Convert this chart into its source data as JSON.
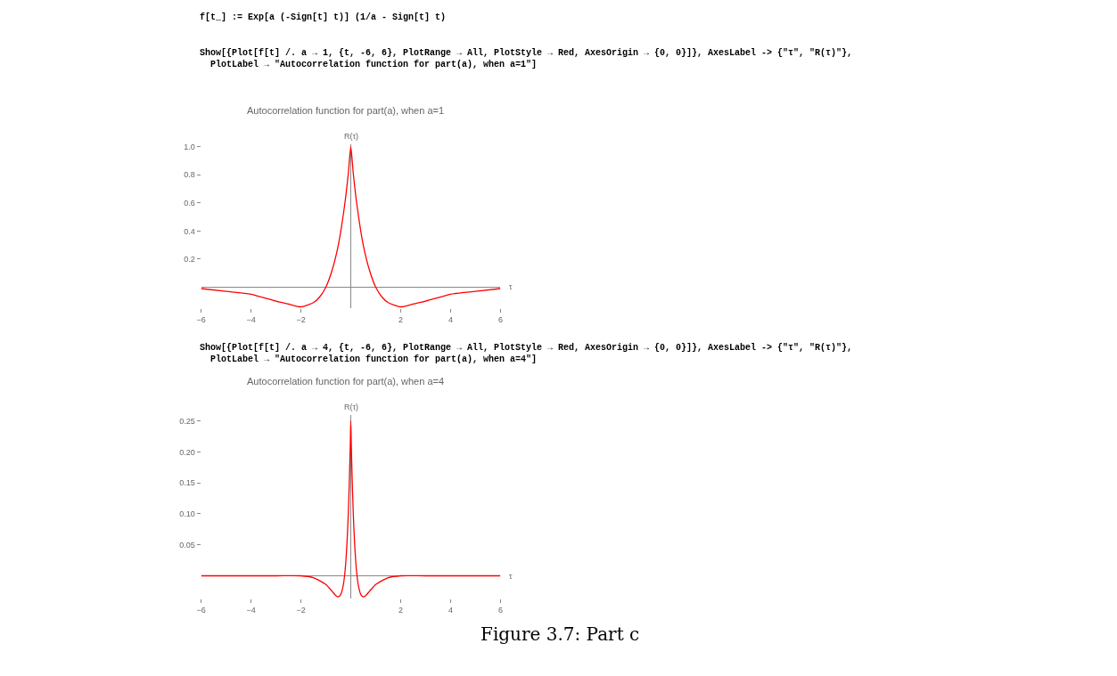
{
  "chart_data": [
    {
      "type": "line",
      "title": "Autocorrelation function for part(a), when a=1",
      "xlabel": "τ",
      "ylabel": "R(τ)",
      "annotations": [
        "f[t_] := Exp[a (-Sign[t] t)] (1/a - Sign[t] t)",
        "Show[{Plot[f[t] /. a → 1, {t, -6, 6}, PlotRange → All, PlotStyle → Red, AxesOrigin → {0, 0}]}, AxesLabel -> {\"τ\", \"R(τ)\"},\n  PlotLabel → \"Autocorrelation function for part(a), when a=1\"]"
      ],
      "x": [
        -6,
        -5,
        -4,
        -3,
        -2.5,
        -2,
        -1.5,
        -1.25,
        -1,
        -0.75,
        -0.5,
        -0.25,
        -0.1,
        0,
        0.1,
        0.25,
        0.5,
        0.75,
        1,
        1.25,
        1.5,
        2,
        2.5,
        3,
        4,
        5,
        6
      ],
      "series": [
        {
          "color": "#ff0000",
          "values": [
            -0.01,
            -0.03,
            -0.05,
            -0.1,
            -0.12,
            -0.14,
            -0.11,
            -0.07,
            0,
            0.12,
            0.3,
            0.58,
            0.81,
            1,
            0.81,
            0.58,
            0.3,
            0.12,
            0,
            -0.07,
            -0.11,
            -0.14,
            -0.12,
            -0.1,
            -0.05,
            -0.03,
            -0.01
          ]
        }
      ],
      "xlim": [
        -6,
        6
      ],
      "ylim": [
        -0.15,
        1.02
      ],
      "xticks": [
        {
          "value": -6,
          "label": "−6"
        },
        {
          "value": -4,
          "label": "−4"
        },
        {
          "value": -2,
          "label": "−2"
        },
        2,
        4,
        6
      ],
      "yticks": [
        0.2,
        0.4,
        0.6,
        0.8,
        {
          "value": 1,
          "label": "1.0"
        }
      ]
    },
    {
      "type": "line",
      "title": "Autocorrelation function for part(a), when a=4",
      "xlabel": "τ",
      "ylabel": "R(τ)",
      "annotations": [
        "Show[{Plot[f[t] /. a → 4, {t, -6, 6}, PlotRange → All, PlotStyle → Red, AxesOrigin → {0, 0}]}, AxesLabel -> {\"τ\", \"R(τ)\"},\n  PlotLabel → \"Autocorrelation function for part(a), when a=4\"]",
        "Figure 3.7: Part c"
      ],
      "x": [
        -6,
        -3,
        -2,
        -1.5,
        -1,
        -0.75,
        -0.6,
        -0.5,
        -0.4,
        -0.3,
        -0.25,
        -0.2,
        -0.15,
        -0.1,
        -0.05,
        -0.02,
        0,
        0.02,
        0.05,
        0.1,
        0.15,
        0.2,
        0.25,
        0.3,
        0.4,
        0.5,
        0.6,
        0.75,
        1,
        1.5,
        2,
        3,
        6
      ],
      "series": [
        {
          "color": "#ff0000",
          "values": [
            0,
            0,
            0,
            -0.003,
            -0.014,
            -0.025,
            -0.032,
            -0.034,
            -0.03,
            -0.015,
            0,
            0.022,
            0.055,
            0.1,
            0.164,
            0.212,
            0.25,
            0.212,
            0.164,
            0.1,
            0.055,
            0.022,
            0,
            -0.015,
            -0.03,
            -0.034,
            -0.032,
            -0.025,
            -0.014,
            -0.003,
            0,
            0,
            0
          ]
        }
      ],
      "xlim": [
        -6,
        6
      ],
      "ylim": [
        -0.037,
        0.26
      ],
      "xticks": [
        {
          "value": -6,
          "label": "−6"
        },
        {
          "value": -4,
          "label": "−4"
        },
        {
          "value": -2,
          "label": "−2"
        },
        2,
        4,
        6
      ],
      "yticks": [
        0.05,
        {
          "value": 0.1,
          "label": "0.10"
        },
        0.15,
        {
          "value": 0.2,
          "label": "0.20"
        },
        0.25
      ]
    }
  ]
}
